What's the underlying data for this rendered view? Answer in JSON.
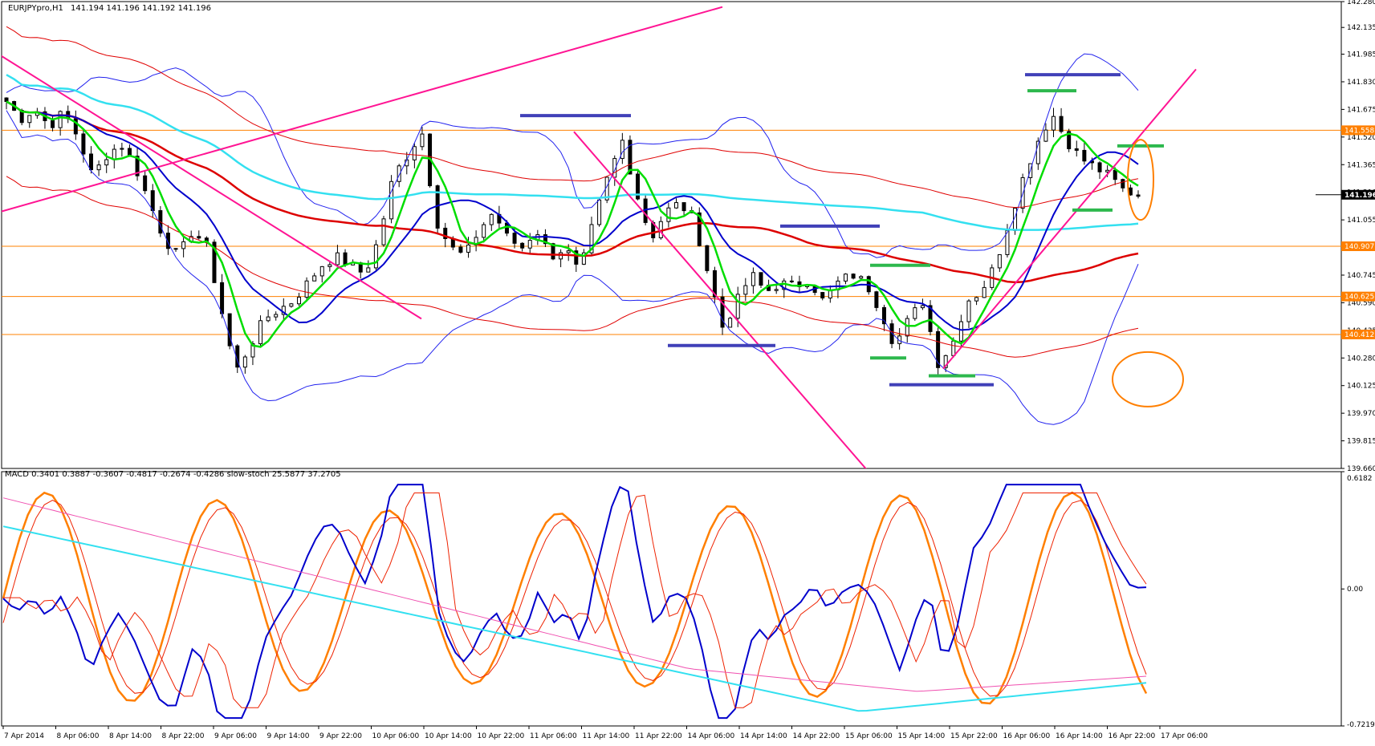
{
  "header": {
    "symbol": "EURJPYpro,H1",
    "ohlc": "141.194 141.196 141.192 141.196",
    "indicator_label": "MACD 0.3401 0.3887 -0.3607 -0.4817 -0.2674 -0.4286  slow-stoch 25.5877 37.2705"
  },
  "colors": {
    "candle": "#000000",
    "ma_green": "#00dd00",
    "ma_blue": "#0000cc",
    "ma_red": "#dd0000",
    "ma_cyan": "#33e0f0",
    "bollinger_blue": "#2222ee",
    "envelope_red": "#e00000",
    "trendline": "#ff1493",
    "level_line": "#ff8000",
    "marker_blue": "#4040b8",
    "marker_green": "#2db84d",
    "circle": "#ff7f00",
    "macd_blue": "#0000cc",
    "macd_red": "#ee2200",
    "stoch_orange": "#ff7f00",
    "cyan": "#33e0f0",
    "magenta": "#f050b0"
  },
  "chart_data": [
    {
      "type": "candlestick",
      "symbol": "EURJPYpro",
      "timeframe": "H1",
      "ylim": [
        139.66,
        142.28
      ],
      "y_ticks": [
        "142.280",
        "142.135",
        "141.985",
        "141.830",
        "141.675",
        "141.520",
        "141.365",
        "141.210",
        "141.055",
        "140.900",
        "140.745",
        "140.590",
        "140.435",
        "140.280",
        "140.125",
        "139.970",
        "139.815",
        "139.660"
      ],
      "level_lines": [
        "141.558",
        "140.907",
        "140.625",
        "140.412"
      ],
      "last_price": "141.196",
      "x_ticks": [
        "7 Apr 2014",
        "8 Apr 06:00",
        "8 Apr 14:00",
        "8 Apr 22:00",
        "9 Apr 06:00",
        "9 Apr 14:00",
        "9 Apr 22:00",
        "10 Apr 06:00",
        "10 Apr 14:00",
        "10 Apr 22:00",
        "11 Apr 06:00",
        "11 Apr 14:00",
        "11 Apr 22:00",
        "14 Apr 06:00",
        "14 Apr 14:00",
        "14 Apr 22:00",
        "15 Apr 06:00",
        "15 Apr 14:00",
        "15 Apr 22:00",
        "16 Apr 06:00",
        "16 Apr 14:00",
        "16 Apr 22:00",
        "17 Apr 06:00"
      ],
      "close_path": [
        141.72,
        141.62,
        141.68,
        141.58,
        141.66,
        141.52,
        141.3,
        141.42,
        141.48,
        141.35,
        141.15,
        140.95,
        140.85,
        141.0,
        140.9,
        140.55,
        140.2,
        140.35,
        140.5,
        140.55,
        140.6,
        140.7,
        140.8,
        140.85,
        140.8,
        140.75,
        140.95,
        141.3,
        141.42,
        141.55,
        141.05,
        140.9,
        140.85,
        141.0,
        141.1,
        140.95,
        140.9,
        141.0,
        140.85,
        140.9,
        140.75,
        141.05,
        141.3,
        141.5,
        141.2,
        140.95,
        141.1,
        141.15,
        141.05,
        140.75,
        140.45,
        140.6,
        140.75,
        140.65,
        140.7,
        140.68,
        140.72,
        140.6,
        140.7,
        140.75,
        140.7,
        140.55,
        140.35,
        140.5,
        140.6,
        140.25,
        140.35,
        140.6,
        140.65,
        140.8,
        141.05,
        141.3,
        141.5,
        141.65,
        141.5,
        141.4,
        141.35,
        141.3,
        141.22,
        141.196
      ]
    },
    {
      "type": "line",
      "name": "MACD",
      "ylim": [
        -0.7219,
        0.6182
      ],
      "y_ticks": [
        "0.6182",
        "0.00",
        "-0.7219"
      ]
    }
  ]
}
